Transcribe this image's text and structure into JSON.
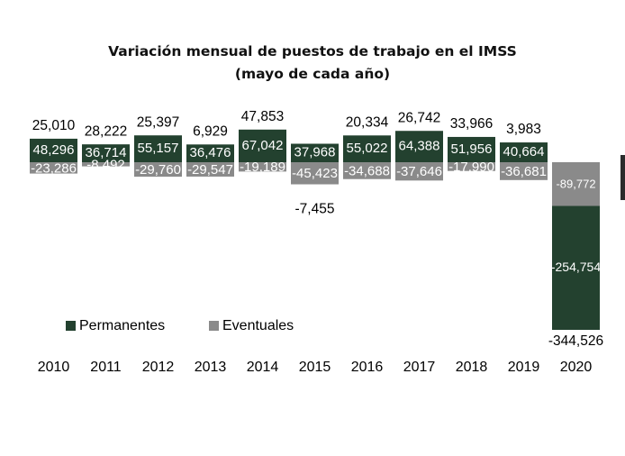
{
  "chart_data": {
    "type": "bar",
    "stacked": true,
    "title": "Variación mensual de puestos de trabajo en el IMSS",
    "subtitle": "(mayo de cada año)",
    "categories": [
      "2010",
      "2011",
      "2012",
      "2013",
      "2014",
      "2015",
      "2016",
      "2017",
      "2018",
      "2019",
      "2020"
    ],
    "series": [
      {
        "name": "Permanentes",
        "color": "#23412f",
        "values": [
          48296,
          36714,
          55157,
          36476,
          67042,
          37968,
          55022,
          64388,
          51956,
          40664,
          -254754
        ],
        "labels": [
          "48,296",
          "36,714",
          "55,157",
          "36,476",
          "67,042",
          "37,968",
          "55,022",
          "64,388",
          "51,956",
          "40,664",
          "-254,754"
        ]
      },
      {
        "name": "Eventuales",
        "color": "#8a8a8a",
        "values": [
          -23286,
          -8492,
          -29760,
          -29547,
          -19189,
          -45423,
          -34688,
          -37646,
          -17990,
          -36681,
          -89772
        ],
        "labels": [
          "-23,286",
          "-8,492",
          "-29,760",
          "-29,547",
          "-19,189",
          "-45,423",
          "-34,688",
          "-37,646",
          "-17,990",
          "-36,681",
          "-89,772"
        ]
      }
    ],
    "totals": [
      25010,
      28222,
      25397,
      6929,
      47853,
      -7455,
      20334,
      26742,
      33966,
      3983,
      -344526
    ],
    "total_labels": [
      "25,010",
      "28,222",
      "25,397",
      "6,929",
      "47,853",
      "-7,455",
      "20,334",
      "26,742",
      "33,966",
      "3,983",
      "-344,526"
    ],
    "legend": {
      "position": "lower-left",
      "entries": [
        "Permanentes",
        "Eventuales"
      ]
    },
    "grid": false
  }
}
